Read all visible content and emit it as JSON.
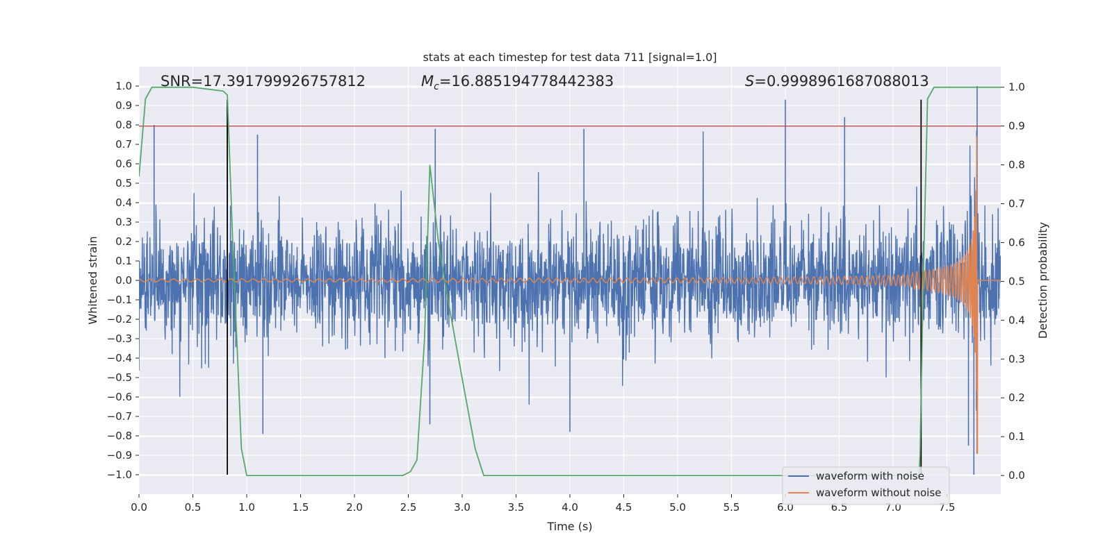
{
  "chart_data": {
    "type": "line",
    "title": "stats at each timestep for test data 711 [signal=1.0]",
    "xlabel": "Time (s)",
    "ylabel": "Whitened strain",
    "y2label": "Detection probability",
    "xlim": [
      0.0,
      8.0
    ],
    "ylim": [
      -1.1,
      1.1
    ],
    "y2lim": [
      -0.048,
      1.053
    ],
    "x_ticks": [
      "0.0",
      "0.5",
      "1.0",
      "1.5",
      "2.0",
      "2.5",
      "3.0",
      "3.5",
      "4.0",
      "4.5",
      "5.0",
      "5.5",
      "6.0",
      "6.5",
      "7.0",
      "7.5"
    ],
    "y_ticks": [
      "1.0",
      "0.9",
      "0.8",
      "0.7",
      "0.6",
      "0.5",
      "0.4",
      "0.3",
      "0.2",
      "0.1",
      "0.0",
      "−0.1",
      "−0.2",
      "−0.3",
      "−0.4",
      "−0.5",
      "−0.6",
      "−0.7",
      "−0.8",
      "−0.9",
      "−1.0"
    ],
    "y2_ticks": [
      "0.0",
      "0.1",
      "0.2",
      "0.3",
      "0.4",
      "0.5",
      "0.6",
      "0.7",
      "0.8",
      "0.9",
      "1.0"
    ],
    "grid": true,
    "legend_position": "bottom-right",
    "annotations": {
      "snr": "SNR=17.391799926757812",
      "mc_symbol": "M",
      "mc_sub": "c",
      "mc_value": "=16.885194778442383",
      "s_symbol": "S",
      "s_value": "=0.9998961687088013"
    },
    "series": [
      {
        "name": "waveform with noise",
        "color": "#4c72b0",
        "axis": "left",
        "x_range": [
          0.0,
          8.0
        ],
        "typical_envelope": [
          -0.32,
          0.33
        ],
        "peak_points": [
          [
            0.14,
            0.8
          ],
          [
            0.82,
            0.93
          ],
          [
            1.1,
            0.75
          ],
          [
            2.75,
            0.78
          ],
          [
            4.13,
            0.78
          ],
          [
            6.0,
            0.93
          ],
          [
            6.55,
            0.84
          ],
          [
            7.78,
            1.0
          ],
          [
            7.75,
            -1.0
          ],
          [
            1.15,
            -0.79
          ],
          [
            2.7,
            -0.74
          ],
          [
            4.0,
            -0.78
          ],
          [
            7.7,
            -0.85
          ]
        ]
      },
      {
        "name": "waveform without noise",
        "color": "#dd8452",
        "axis": "left",
        "x_range": [
          0.0,
          8.0
        ],
        "merger_time": 7.78,
        "peak_amplitude": 0.97,
        "min_at_merger": -0.89
      },
      {
        "color": "#55a868",
        "axis": "right",
        "x": [
          0.0,
          0.06,
          0.12,
          0.5,
          0.78,
          0.82,
          0.87,
          0.95,
          1.0,
          1.1,
          2.45,
          2.52,
          2.58,
          2.65,
          2.7,
          2.78,
          2.85,
          3.0,
          3.12,
          3.2,
          3.25,
          7.24,
          7.25,
          7.28,
          7.32,
          7.38,
          8.0
        ],
        "values": [
          0.77,
          0.97,
          1.0,
          1.0,
          0.99,
          0.98,
          0.6,
          0.07,
          0.0,
          0.0,
          0.0,
          0.01,
          0.04,
          0.35,
          0.8,
          0.6,
          0.48,
          0.25,
          0.07,
          0.0,
          0.0,
          0.0,
          0.05,
          0.5,
          0.97,
          1.0,
          1.0
        ]
      }
    ],
    "reference_lines": {
      "threshold_value": 0.9,
      "threshold_color": "#c44e52",
      "trigger_times": [
        0.82,
        7.26
      ],
      "trigger_color": "#000000"
    }
  }
}
